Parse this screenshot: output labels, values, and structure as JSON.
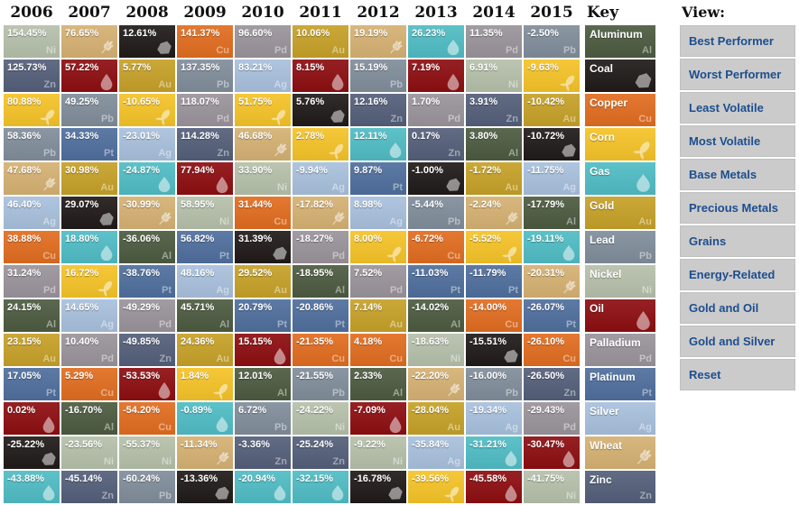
{
  "header": {
    "key_label": "Key",
    "view_label": "View:"
  },
  "commodities": {
    "Al": {
      "name": "Aluminum",
      "symbol": "Al",
      "icon": null,
      "color": "#4d5b41"
    },
    "Coal": {
      "name": "Coal",
      "symbol": null,
      "icon": "coal-icon",
      "color": "#201b19"
    },
    "Cu": {
      "name": "Copper",
      "symbol": "Cu",
      "icon": null,
      "color": "#e16d20"
    },
    "Corn": {
      "name": "Corn",
      "symbol": null,
      "icon": "corn-icon",
      "color": "#f5c328"
    },
    "Gas": {
      "name": "Gas",
      "symbol": null,
      "icon": "flame-icon",
      "color": "#50bcc4"
    },
    "Au": {
      "name": "Gold",
      "symbol": "Au",
      "icon": null,
      "color": "#c6a128"
    },
    "Pb": {
      "name": "Lead",
      "symbol": "Pb",
      "icon": null,
      "color": "#818d9b"
    },
    "Ni": {
      "name": "Nickel",
      "symbol": "Ni",
      "icon": null,
      "color": "#b5c0aa"
    },
    "Oil": {
      "name": "Oil",
      "symbol": null,
      "icon": "oil-drop-icon",
      "color": "#8d0e11"
    },
    "Pd": {
      "name": "Palladium",
      "symbol": "Pd",
      "icon": null,
      "color": "#9a939b"
    },
    "Pt": {
      "name": "Platinum",
      "symbol": "Pt",
      "icon": null,
      "color": "#4f6f9d"
    },
    "Ag": {
      "name": "Silver",
      "symbol": "Ag",
      "icon": null,
      "color": "#a8c0dd"
    },
    "Wheat": {
      "name": "Wheat",
      "symbol": null,
      "icon": "wheat-icon",
      "color": "#d5b173"
    },
    "Zn": {
      "name": "Zinc",
      "symbol": "Zn",
      "icon": null,
      "color": "#545f7a"
    }
  },
  "key_order": [
    "Al",
    "Coal",
    "Cu",
    "Corn",
    "Gas",
    "Au",
    "Pb",
    "Ni",
    "Oil",
    "Pd",
    "Pt",
    "Ag",
    "Wheat",
    "Zn"
  ],
  "view_buttons": [
    "Best Performer",
    "Worst Performer",
    "Least Volatile",
    "Most Volatile",
    "Base Metals",
    "Precious Metals",
    "Grains",
    "Energy-Related",
    "Gold and Oil",
    "Gold and Silver",
    "Reset"
  ],
  "chart_data": {
    "type": "heatmap",
    "unit": "percent annual return",
    "layout": "commodities ranked best-to-worst within each year column",
    "years": [
      "2006",
      "2007",
      "2008",
      "2009",
      "2010",
      "2011",
      "2012",
      "2013",
      "2014",
      "2015"
    ],
    "ranked_returns_pct": {
      "2006": [
        [
          "Ni",
          154.45
        ],
        [
          "Zn",
          125.73
        ],
        [
          "Corn",
          80.88
        ],
        [
          "Pb",
          58.36
        ],
        [
          "Wheat",
          47.68
        ],
        [
          "Ag",
          46.4
        ],
        [
          "Cu",
          38.88
        ],
        [
          "Pd",
          31.24
        ],
        [
          "Al",
          24.15
        ],
        [
          "Au",
          23.15
        ],
        [
          "Pt",
          17.05
        ],
        [
          "Oil",
          0.02
        ],
        [
          "Coal",
          -25.22
        ],
        [
          "Gas",
          -43.88
        ]
      ],
      "2007": [
        [
          "Wheat",
          76.65
        ],
        [
          "Oil",
          57.22
        ],
        [
          "Pb",
          49.25
        ],
        [
          "Pt",
          34.33
        ],
        [
          "Au",
          30.98
        ],
        [
          "Coal",
          29.07
        ],
        [
          "Gas",
          18.8
        ],
        [
          "Corn",
          16.72
        ],
        [
          "Ag",
          14.65
        ],
        [
          "Pd",
          10.4
        ],
        [
          "Cu",
          5.29
        ],
        [
          "Al",
          -16.7
        ],
        [
          "Ni",
          -23.56
        ],
        [
          "Zn",
          -45.14
        ]
      ],
      "2008": [
        [
          "Coal",
          12.61
        ],
        [
          "Au",
          5.77
        ],
        [
          "Corn",
          -10.65
        ],
        [
          "Ag",
          -23.01
        ],
        [
          "Gas",
          -24.87
        ],
        [
          "Wheat",
          -30.99
        ],
        [
          "Al",
          -36.06
        ],
        [
          "Pt",
          -38.76
        ],
        [
          "Pd",
          -49.29
        ],
        [
          "Zn",
          -49.85
        ],
        [
          "Oil",
          -53.53
        ],
        [
          "Cu",
          -54.2
        ],
        [
          "Ni",
          -55.37
        ],
        [
          "Pb",
          -60.24
        ]
      ],
      "2009": [
        [
          "Cu",
          141.37
        ],
        [
          "Pb",
          137.35
        ],
        [
          "Pd",
          118.07
        ],
        [
          "Zn",
          114.28
        ],
        [
          "Oil",
          77.94
        ],
        [
          "Ni",
          58.95
        ],
        [
          "Pt",
          56.82
        ],
        [
          "Ag",
          48.16
        ],
        [
          "Al",
          45.71
        ],
        [
          "Au",
          24.36
        ],
        [
          "Corn",
          1.84
        ],
        [
          "Gas",
          -0.89
        ],
        [
          "Wheat",
          -11.34
        ],
        [
          "Coal",
          -13.36
        ]
      ],
      "2010": [
        [
          "Pd",
          96.6
        ],
        [
          "Ag",
          83.21
        ],
        [
          "Corn",
          51.75
        ],
        [
          "Wheat",
          46.68
        ],
        [
          "Ni",
          33.9
        ],
        [
          "Cu",
          31.44
        ],
        [
          "Coal",
          31.39
        ],
        [
          "Au",
          29.52
        ],
        [
          "Pt",
          20.79
        ],
        [
          "Oil",
          15.15
        ],
        [
          "Al",
          12.01
        ],
        [
          "Pb",
          6.72
        ],
        [
          "Zn",
          -3.36
        ],
        [
          "Gas",
          -20.94
        ]
      ],
      "2011": [
        [
          "Au",
          10.06
        ],
        [
          "Oil",
          8.15
        ],
        [
          "Coal",
          5.76
        ],
        [
          "Corn",
          2.78
        ],
        [
          "Ag",
          -9.94
        ],
        [
          "Wheat",
          -17.82
        ],
        [
          "Pd",
          -18.27
        ],
        [
          "Al",
          -18.95
        ],
        [
          "Pt",
          -20.86
        ],
        [
          "Cu",
          -21.35
        ],
        [
          "Pb",
          -21.55
        ],
        [
          "Ni",
          -24.22
        ],
        [
          "Zn",
          -25.24
        ],
        [
          "Gas",
          -32.15
        ]
      ],
      "2012": [
        [
          "Wheat",
          19.19
        ],
        [
          "Pb",
          15.19
        ],
        [
          "Zn",
          12.16
        ],
        [
          "Gas",
          12.11
        ],
        [
          "Pt",
          9.87
        ],
        [
          "Ag",
          8.98
        ],
        [
          "Corn",
          8.0
        ],
        [
          "Pd",
          7.52
        ],
        [
          "Au",
          7.14
        ],
        [
          "Cu",
          4.18
        ],
        [
          "Al",
          2.33
        ],
        [
          "Oil",
          -7.09
        ],
        [
          "Ni",
          -9.22
        ],
        [
          "Coal",
          -16.78
        ]
      ],
      "2013": [
        [
          "Gas",
          26.23
        ],
        [
          "Oil",
          7.19
        ],
        [
          "Pd",
          1.7
        ],
        [
          "Zn",
          0.17
        ],
        [
          "Coal",
          -1.0
        ],
        [
          "Pb",
          -5.44
        ],
        [
          "Cu",
          -6.72
        ],
        [
          "Pt",
          -11.03
        ],
        [
          "Al",
          -14.02
        ],
        [
          "Ni",
          -18.63
        ],
        [
          "Wheat",
          -22.2
        ],
        [
          "Au",
          -28.04
        ],
        [
          "Ag",
          -35.84
        ],
        [
          "Corn",
          -39.56
        ]
      ],
      "2014": [
        [
          "Pd",
          11.35
        ],
        [
          "Ni",
          6.91
        ],
        [
          "Zn",
          3.91
        ],
        [
          "Al",
          3.8
        ],
        [
          "Au",
          -1.72
        ],
        [
          "Wheat",
          -2.24
        ],
        [
          "Corn",
          -5.52
        ],
        [
          "Pt",
          -11.79
        ],
        [
          "Cu",
          -14.0
        ],
        [
          "Coal",
          -15.51
        ],
        [
          "Pb",
          -16.0
        ],
        [
          "Ag",
          -19.34
        ],
        [
          "Gas",
          -31.21
        ],
        [
          "Oil",
          -45.58
        ]
      ],
      "2015": [
        [
          "Pb",
          -2.5
        ],
        [
          "Corn",
          -9.63
        ],
        [
          "Au",
          -10.42
        ],
        [
          "Coal",
          -10.72
        ],
        [
          "Ag",
          -11.75
        ],
        [
          "Al",
          -17.79
        ],
        [
          "Gas",
          -19.11
        ],
        [
          "Wheat",
          -20.31
        ],
        [
          "Pt",
          -26.07
        ],
        [
          "Cu",
          -26.1
        ],
        [
          "Zn",
          -26.5
        ],
        [
          "Pd",
          -29.43
        ],
        [
          "Oil",
          -30.47
        ],
        [
          "Ni",
          -41.75
        ]
      ]
    }
  }
}
